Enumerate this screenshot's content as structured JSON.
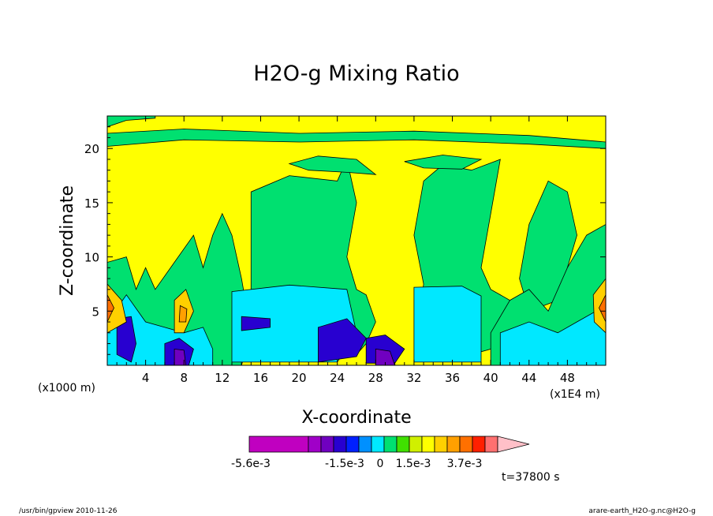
{
  "chart_data": {
    "type": "heatmap",
    "title": "H2O-g Mixing Ratio",
    "xlabel": "X-coordinate",
    "ylabel": "Z-coordinate",
    "x_unit": "(x1E4 m)",
    "y_unit": "(x1000 m)",
    "xlim": [
      0,
      52
    ],
    "ylim": [
      0,
      23
    ],
    "x_ticks": [
      4,
      8,
      12,
      16,
      20,
      24,
      28,
      32,
      36,
      40,
      44,
      48
    ],
    "x_tick_labels": [
      "4",
      "8",
      "12",
      "16",
      "20",
      "24",
      "28",
      "32",
      "36",
      "40",
      "44",
      "48"
    ],
    "y_ticks": [
      5,
      10,
      15,
      20
    ],
    "y_tick_labels": [
      "5",
      "10",
      "15",
      "20"
    ],
    "colorbar": {
      "labels": [
        "-5.6e-3",
        "-1.5e-3",
        "0",
        "1.5e-3",
        "3.7e-3"
      ],
      "colors": [
        "#c000c0",
        "#a000c8",
        "#7000c0",
        "#2800d0",
        "#0020ff",
        "#0090ff",
        "#00e8ff",
        "#00e070",
        "#40e000",
        "#d0f000",
        "#ffff00",
        "#ffd000",
        "#ffa000",
        "#ff7000",
        "#ff2000",
        "#ff7070",
        "#ffc0c8"
      ]
    },
    "regions": [
      {
        "shape": "rect",
        "x": 0,
        "z": 0,
        "w": 52,
        "h": 23,
        "c": "#ffff00"
      },
      {
        "shape": "path",
        "c": "#00e070",
        "pts": [
          [
            15,
            7.5
          ],
          [
            15,
            16
          ],
          [
            19,
            17.5
          ],
          [
            24,
            17
          ],
          [
            25,
            19
          ],
          [
            26,
            15
          ],
          [
            25,
            10
          ],
          [
            26,
            7
          ],
          [
            27,
            6.5
          ],
          [
            28,
            4
          ],
          [
            27,
            2
          ],
          [
            26,
            1
          ],
          [
            22,
            1
          ],
          [
            18,
            2
          ],
          [
            15,
            3
          ]
        ]
      },
      {
        "shape": "path",
        "c": "#00e070",
        "pts": [
          [
            33,
            7.5
          ],
          [
            32,
            12
          ],
          [
            33,
            17
          ],
          [
            35,
            18.5
          ],
          [
            38,
            18
          ],
          [
            41,
            19
          ],
          [
            40,
            14
          ],
          [
            39,
            9
          ],
          [
            40,
            7
          ],
          [
            42,
            6
          ],
          [
            43,
            4
          ],
          [
            41,
            3
          ],
          [
            40,
            1.5
          ],
          [
            36,
            0.5
          ],
          [
            32,
            1
          ]
        ]
      },
      {
        "shape": "path",
        "c": "#00e070",
        "pts": [
          [
            43,
            8
          ],
          [
            44,
            13
          ],
          [
            46,
            17
          ],
          [
            48,
            16
          ],
          [
            49,
            12
          ],
          [
            48,
            9
          ],
          [
            47,
            6
          ],
          [
            44,
            5
          ]
        ]
      },
      {
        "shape": "path",
        "c": "#00e070",
        "pts": [
          [
            0,
            0
          ],
          [
            0,
            9.5
          ],
          [
            2,
            10
          ],
          [
            3,
            7
          ],
          [
            4,
            9
          ],
          [
            5,
            7
          ],
          [
            7,
            9.5
          ],
          [
            9,
            12
          ],
          [
            10,
            9
          ],
          [
            11,
            12
          ],
          [
            12,
            14
          ],
          [
            13,
            12
          ],
          [
            14,
            8
          ],
          [
            15,
            3
          ],
          [
            14,
            0
          ]
        ]
      },
      {
        "shape": "path",
        "c": "#00e070",
        "pts": [
          [
            40,
            0
          ],
          [
            40,
            3
          ],
          [
            42,
            6
          ],
          [
            44,
            7
          ],
          [
            46,
            5
          ],
          [
            48,
            9
          ],
          [
            50,
            12
          ],
          [
            52,
            13
          ],
          [
            52,
            0
          ]
        ]
      },
      {
        "shape": "path",
        "c": "#00e070",
        "pts": [
          [
            0,
            20.2
          ],
          [
            0,
            21.4
          ],
          [
            8,
            21.8
          ],
          [
            20,
            21.4
          ],
          [
            32,
            21.6
          ],
          [
            44,
            21.2
          ],
          [
            52,
            20.6
          ],
          [
            52,
            20
          ],
          [
            44,
            20.4
          ],
          [
            32,
            20.8
          ],
          [
            20,
            20.6
          ],
          [
            8,
            20.8
          ]
        ]
      },
      {
        "shape": "path",
        "c": "#00e070",
        "pts": [
          [
            19,
            18.6
          ],
          [
            22,
            19.3
          ],
          [
            26,
            19
          ],
          [
            28,
            17.6
          ],
          [
            25,
            17.8
          ],
          [
            21,
            18
          ]
        ]
      },
      {
        "shape": "path",
        "c": "#00e070",
        "pts": [
          [
            31,
            18.8
          ],
          [
            35,
            19.4
          ],
          [
            39,
            19
          ],
          [
            37,
            18.1
          ],
          [
            33,
            18.2
          ]
        ]
      },
      {
        "shape": "path",
        "c": "#00e070",
        "pts": [
          [
            0,
            22
          ],
          [
            2,
            22.6
          ],
          [
            5,
            22.8
          ],
          [
            5,
            23
          ],
          [
            0,
            23
          ]
        ]
      },
      {
        "shape": "path",
        "c": "#00e8ff",
        "pts": [
          [
            13,
            0.3
          ],
          [
            13,
            6.8
          ],
          [
            19,
            7.4
          ],
          [
            25,
            7
          ],
          [
            26,
            3
          ],
          [
            24,
            0.3
          ]
        ]
      },
      {
        "shape": "path",
        "c": "#00e8ff",
        "pts": [
          [
            32,
            0.3
          ],
          [
            32,
            7.2
          ],
          [
            37,
            7.3
          ],
          [
            39,
            6.4
          ],
          [
            39,
            0.3
          ]
        ]
      },
      {
        "shape": "path",
        "c": "#00e8ff",
        "pts": [
          [
            0,
            0
          ],
          [
            0,
            4
          ],
          [
            2,
            6.5
          ],
          [
            4,
            4
          ],
          [
            6,
            3.5
          ],
          [
            8,
            3
          ],
          [
            10,
            3.5
          ],
          [
            11,
            1.5
          ],
          [
            11,
            0
          ]
        ]
      },
      {
        "shape": "path",
        "c": "#00e8ff",
        "pts": [
          [
            41,
            0
          ],
          [
            41,
            3
          ],
          [
            44,
            4
          ],
          [
            47,
            3
          ],
          [
            49,
            4
          ],
          [
            51,
            5
          ],
          [
            52,
            4
          ],
          [
            52,
            0
          ]
        ]
      },
      {
        "shape": "path",
        "c": "#2800d0",
        "pts": [
          [
            22,
            0.3
          ],
          [
            22,
            3.5
          ],
          [
            25,
            4.3
          ],
          [
            27,
            2.5
          ],
          [
            26,
            0.8
          ]
        ]
      },
      {
        "shape": "path",
        "c": "#2800d0",
        "pts": [
          [
            14,
            3.2
          ],
          [
            14,
            4.5
          ],
          [
            17,
            4.3
          ],
          [
            17,
            3.5
          ]
        ]
      },
      {
        "shape": "path",
        "c": "#2800d0",
        "pts": [
          [
            27,
            0.2
          ],
          [
            27,
            2.5
          ],
          [
            29,
            2.8
          ],
          [
            31,
            1.5
          ],
          [
            30,
            0.2
          ]
        ]
      },
      {
        "shape": "path",
        "c": "#2800d0",
        "pts": [
          [
            1,
            1
          ],
          [
            1,
            4.3
          ],
          [
            2.5,
            4.5
          ],
          [
            3,
            2
          ],
          [
            2.5,
            0.3
          ]
        ]
      },
      {
        "shape": "path",
        "c": "#2800d0",
        "pts": [
          [
            6,
            0
          ],
          [
            6,
            2
          ],
          [
            7.5,
            2.5
          ],
          [
            9,
            1.5
          ],
          [
            8.5,
            0
          ]
        ]
      },
      {
        "shape": "path",
        "c": "#7000c0",
        "pts": [
          [
            7,
            0
          ],
          [
            7,
            1.5
          ],
          [
            8,
            1.4
          ],
          [
            8.2,
            0
          ]
        ]
      },
      {
        "shape": "path",
        "c": "#7000c0",
        "pts": [
          [
            28,
            0
          ],
          [
            28,
            1.5
          ],
          [
            29.5,
            1.3
          ],
          [
            30,
            0
          ]
        ]
      },
      {
        "shape": "path",
        "c": "#ffd000",
        "pts": [
          [
            0,
            3
          ],
          [
            0,
            7.5
          ],
          [
            1.5,
            6
          ],
          [
            2,
            4
          ]
        ]
      },
      {
        "shape": "path",
        "c": "#ffd000",
        "pts": [
          [
            7,
            3
          ],
          [
            7,
            6
          ],
          [
            8.2,
            7
          ],
          [
            9,
            5
          ],
          [
            8,
            3
          ]
        ]
      },
      {
        "shape": "path",
        "c": "#ffd000",
        "pts": [
          [
            52,
            3
          ],
          [
            52,
            8
          ],
          [
            50.7,
            6.5
          ],
          [
            50.8,
            4
          ]
        ]
      },
      {
        "shape": "path",
        "c": "#ff7000",
        "pts": [
          [
            0,
            4
          ],
          [
            0,
            6.5
          ],
          [
            0.7,
            5.3
          ]
        ]
      },
      {
        "shape": "path",
        "c": "#ff7000",
        "pts": [
          [
            52,
            4
          ],
          [
            52,
            6.5
          ],
          [
            51.3,
            5.3
          ]
        ]
      },
      {
        "shape": "path",
        "c": "#ffa000",
        "pts": [
          [
            7.5,
            4
          ],
          [
            7.6,
            5.5
          ],
          [
            8.3,
            5.2
          ],
          [
            8.2,
            4
          ]
        ]
      }
    ]
  },
  "footer": {
    "program": "/usr/bin/gpview  2010-11-26",
    "time": "t=37800 s",
    "source": "arare-earth_H2O-g.nc@H2O-g"
  }
}
